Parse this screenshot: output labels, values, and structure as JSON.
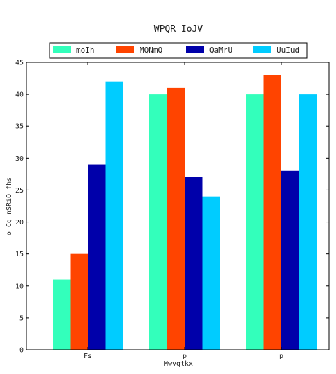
{
  "chart_data": {
    "type": "bar",
    "title": "WPQR IoJV",
    "xlabel": "Mwvqtkx",
    "ylabel": "o Cg nSRiO fhs",
    "categories": [
      "Fs",
      "p",
      "p"
    ],
    "ylim": [
      0,
      45
    ],
    "yticks": [
      0,
      5,
      10,
      15,
      20,
      25,
      30,
      35,
      40,
      45
    ],
    "grid": false,
    "legend_position": "top-center",
    "series": [
      {
        "name": "moIh",
        "color": "#33ffbb",
        "values": [
          11,
          40,
          40
        ]
      },
      {
        "name": "MQNmQ",
        "color": "#ff4400",
        "values": [
          15,
          41,
          43
        ]
      },
      {
        "name": "QaMrU",
        "color": "#0000aa",
        "values": [
          29,
          27,
          28
        ]
      },
      {
        "name": "UuIud",
        "color": "#00ccff",
        "values": [
          42,
          24,
          40
        ]
      }
    ]
  }
}
